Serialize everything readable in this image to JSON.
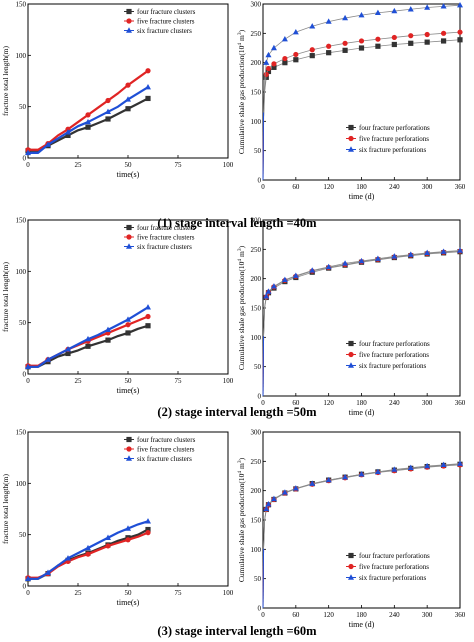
{
  "figure": {
    "colors": {
      "four": "#333333",
      "five": "#e02424",
      "six": "#1f4fd6",
      "fit": "#8a8a8a",
      "axis": "#000000"
    },
    "rows": [
      {
        "caption": "(1) stage interval length =40m",
        "left": {
          "xlabel": "time(s)",
          "ylabel": "fracture total length(m)",
          "legend": [
            "four fracture clusters",
            "five fracture clusters",
            "six fracture clusters"
          ]
        },
        "right": {
          "xlabel": "time (d)",
          "ylabel_main": "Cumulative shale gas production(10",
          "ylabel_sup": "4",
          "ylabel_tail": " m",
          "ylabel_sup2": "3",
          "ylabel_end": ")",
          "legend": [
            "four fracture perforations",
            "five fracture perforations",
            "six fracture perforations"
          ]
        }
      },
      {
        "caption": "(2) stage interval length =50m",
        "left": {
          "xlabel": "time(s)",
          "ylabel": "fracture total length(m)",
          "legend": [
            "four fracture clusters",
            "five fracture clusters",
            "six fracture clusters"
          ]
        },
        "right": {
          "xlabel": "time (d)",
          "ylabel_main": "Cumulative shale gas production(10",
          "ylabel_sup": "4",
          "ylabel_tail": " m",
          "ylabel_sup2": "3",
          "ylabel_end": ")",
          "legend": [
            "four fracture perforations",
            "five fracture perforations",
            "six fracture perforations"
          ]
        }
      },
      {
        "caption": "(3) stage interval length =60m",
        "left": {
          "xlabel": "time(s)",
          "ylabel": "fracture total length(m)",
          "legend": [
            "four fracture clusters",
            "five fracture clusters",
            "six fracture clusters"
          ]
        },
        "right": {
          "xlabel": "time (d)",
          "ylabel_main": "Cumulative shale gas production(10",
          "ylabel_sup": "4",
          "ylabel_tail": " m",
          "ylabel_sup2": "3",
          "ylabel_end": ")",
          "legend": [
            "four fracture perforations",
            "five fracture perforations",
            "six fracture perforations"
          ]
        }
      }
    ]
  },
  "chart_data": [
    {
      "type": "line",
      "row": 1,
      "panel": "left",
      "xlabel": "time(s)",
      "ylabel": "fracture total length(m)",
      "xlim": [
        0,
        100
      ],
      "ylim": [
        0,
        150
      ],
      "xticks": [
        0,
        25,
        50,
        75,
        100
      ],
      "yticks": [
        0,
        50,
        100,
        150
      ],
      "x": [
        0,
        5,
        10,
        15,
        20,
        25,
        30,
        35,
        40,
        45,
        50,
        55,
        60
      ],
      "series": [
        {
          "name": "four fracture clusters",
          "values": [
            7,
            7,
            12,
            17,
            22,
            27,
            30,
            34,
            38,
            43,
            48,
            53,
            58
          ]
        },
        {
          "name": "five fracture clusters",
          "values": [
            8,
            8,
            14,
            22,
            28,
            35,
            42,
            49,
            56,
            63,
            71,
            78,
            85
          ]
        },
        {
          "name": "six fracture clusters",
          "values": [
            5,
            5,
            13,
            19,
            25,
            31,
            35,
            40,
            45,
            50,
            57,
            63,
            69
          ]
        }
      ]
    },
    {
      "type": "scatter",
      "row": 1,
      "panel": "right",
      "xlabel": "time (d)",
      "ylabel": "Cumulative shale gas production(10^4 m^3)",
      "xlim": [
        0,
        360
      ],
      "ylim": [
        0,
        300
      ],
      "xticks": [
        0,
        60,
        120,
        180,
        240,
        300,
        360
      ],
      "yticks": [
        0,
        50,
        100,
        150,
        200,
        250,
        300
      ],
      "fit_lines": true,
      "legend_position": "bottom-right",
      "x": [
        1,
        3,
        6,
        10,
        20,
        40,
        60,
        90,
        120,
        150,
        180,
        210,
        240,
        270,
        300,
        330,
        360
      ],
      "series": [
        {
          "name": "four fracture perforations",
          "values": [
            100,
            150,
            175,
            185,
            192,
            200,
            205,
            212,
            217,
            221,
            225,
            228,
            231,
            233,
            235,
            237,
            239
          ]
        },
        {
          "name": "five fracture perforations",
          "values": [
            105,
            155,
            180,
            190,
            198,
            207,
            214,
            222,
            228,
            233,
            237,
            240,
            243,
            246,
            248,
            250,
            252
          ]
        },
        {
          "name": "six fracture perforations",
          "values": [
            115,
            170,
            200,
            213,
            225,
            240,
            252,
            262,
            270,
            276,
            281,
            285,
            288,
            291,
            294,
            296,
            298
          ]
        }
      ]
    },
    {
      "type": "line",
      "row": 2,
      "panel": "left",
      "xlabel": "time(s)",
      "ylabel": "fracture total length(m)",
      "xlim": [
        0,
        100
      ],
      "ylim": [
        0,
        150
      ],
      "xticks": [
        0,
        25,
        50,
        75,
        100
      ],
      "yticks": [
        0,
        50,
        100,
        150
      ],
      "x": [
        0,
        5,
        10,
        15,
        20,
        25,
        30,
        35,
        40,
        45,
        50,
        55,
        60
      ],
      "series": [
        {
          "name": "four fracture clusters",
          "values": [
            7,
            7,
            12,
            17,
            20,
            23,
            27,
            30,
            33,
            37,
            40,
            44,
            47
          ]
        },
        {
          "name": "five fracture clusters",
          "values": [
            8,
            8,
            14,
            19,
            24,
            28,
            32,
            36,
            40,
            44,
            48,
            52,
            56
          ]
        },
        {
          "name": "six fracture clusters",
          "values": [
            7,
            7,
            14,
            19,
            24,
            29,
            34,
            38,
            43,
            48,
            53,
            59,
            65
          ]
        }
      ]
    },
    {
      "type": "scatter",
      "row": 2,
      "panel": "right",
      "xlabel": "time (d)",
      "ylabel": "Cumulative shale gas production(10^4 m^3)",
      "xlim": [
        0,
        360
      ],
      "ylim": [
        0,
        300
      ],
      "xticks": [
        0,
        60,
        120,
        180,
        240,
        300,
        360
      ],
      "yticks": [
        0,
        50,
        100,
        150,
        200,
        250,
        300
      ],
      "fit_lines": true,
      "legend_position": "bottom-right",
      "x": [
        1,
        3,
        6,
        10,
        20,
        40,
        60,
        90,
        120,
        150,
        180,
        210,
        240,
        270,
        300,
        330,
        360
      ],
      "series": [
        {
          "name": "four fracture perforations",
          "values": [
            100,
            150,
            168,
            176,
            184,
            195,
            202,
            211,
            218,
            223,
            228,
            232,
            236,
            239,
            242,
            244,
            246
          ]
        },
        {
          "name": "five fracture perforations",
          "values": [
            101,
            151,
            169,
            177,
            186,
            197,
            204,
            213,
            219,
            224,
            229,
            233,
            237,
            240,
            243,
            245,
            247
          ]
        },
        {
          "name": "six fracture perforations",
          "values": [
            102,
            152,
            170,
            178,
            187,
            198,
            205,
            214,
            220,
            226,
            230,
            234,
            238,
            241,
            244,
            246,
            248
          ]
        }
      ]
    },
    {
      "type": "line",
      "row": 3,
      "panel": "left",
      "xlabel": "time(s)",
      "ylabel": "fracture total length(m)",
      "xlim": [
        0,
        100
      ],
      "ylim": [
        0,
        150
      ],
      "xticks": [
        0,
        25,
        50,
        75,
        100
      ],
      "yticks": [
        0,
        50,
        100,
        150
      ],
      "x": [
        0,
        5,
        10,
        15,
        20,
        25,
        30,
        35,
        40,
        45,
        50,
        55,
        60
      ],
      "series": [
        {
          "name": "four fracture clusters",
          "values": [
            7,
            7,
            12,
            20,
            25,
            29,
            32,
            36,
            40,
            44,
            47,
            50,
            55
          ]
        },
        {
          "name": "five fracture clusters",
          "values": [
            8,
            8,
            12,
            19,
            24,
            28,
            31,
            35,
            39,
            42,
            45,
            48,
            52
          ]
        },
        {
          "name": "six fracture clusters",
          "values": [
            7,
            7,
            13,
            20,
            27,
            32,
            37,
            42,
            47,
            52,
            56,
            60,
            63
          ]
        }
      ]
    },
    {
      "type": "scatter",
      "row": 3,
      "panel": "right",
      "xlabel": "time (d)",
      "ylabel": "Cumulative shale gas production(10^4 m^3)",
      "xlim": [
        0,
        360
      ],
      "ylim": [
        0,
        300
      ],
      "xticks": [
        0,
        60,
        120,
        180,
        240,
        300,
        360
      ],
      "yticks": [
        0,
        50,
        100,
        150,
        200,
        250,
        300
      ],
      "fit_lines": true,
      "legend_position": "bottom-right",
      "x": [
        1,
        3,
        6,
        10,
        20,
        40,
        60,
        90,
        120,
        150,
        180,
        210,
        240,
        270,
        300,
        330,
        360
      ],
      "series": [
        {
          "name": "four fracture perforations",
          "values": [
            100,
            150,
            168,
            176,
            185,
            196,
            203,
            212,
            218,
            223,
            228,
            232,
            235,
            238,
            241,
            243,
            245
          ]
        },
        {
          "name": "five fracture perforations",
          "values": [
            100,
            150,
            168,
            176,
            185,
            196,
            203,
            211,
            217,
            222,
            227,
            231,
            234,
            237,
            240,
            242,
            244
          ]
        },
        {
          "name": "six fracture perforations",
          "values": [
            101,
            151,
            169,
            177,
            186,
            197,
            204,
            212,
            218,
            223,
            228,
            232,
            236,
            239,
            242,
            244,
            246
          ]
        }
      ]
    }
  ]
}
